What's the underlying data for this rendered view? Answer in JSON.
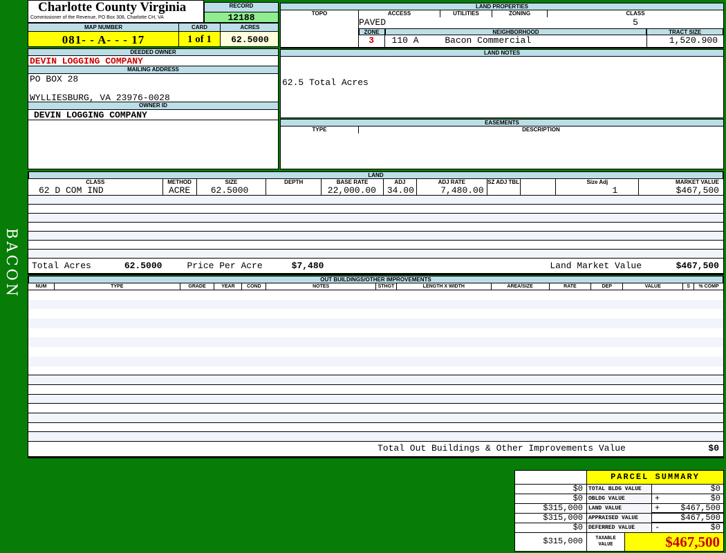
{
  "colors": {
    "page_green": "#077c07",
    "header_blue": "#BCDEE8",
    "highlight_yellow": "#FFFF00",
    "record_green": "#90EE90",
    "acres_cream": "#FFFFDE",
    "alert_red": "#CC0000",
    "stripe_blue": "#F1F4FA"
  },
  "header": {
    "county_title": "Charlotte County Virginia",
    "county_subtitle": "Commissioner of the Revenue, PO Box 308, Charlotte CH, VA",
    "record_label": "RECORD",
    "record_value": "12188",
    "map_number_label": "MAP NUMBER",
    "map_number": "081- - A- -  - 17",
    "card_label": "CARD",
    "card": "1 of 1",
    "acres_label": "ACRES",
    "acres": "62.5000"
  },
  "owner": {
    "deeded_owner_label": "DEEDED OWNER",
    "deeded_owner": "DEVIN LOGGING COMPANY",
    "mailing_address_label": "MAILING ADDRESS",
    "address_line1": "PO BOX 28",
    "address_line2": "WYLLIESBURG, VA 23976-0028",
    "owner_id_label": "OWNER ID",
    "owner_id": "DEVIN LOGGING COMPANY"
  },
  "land_properties": {
    "title": "LAND PROPERTIES",
    "topo_label": "TOPO",
    "access_label": "ACCESS",
    "utilities_label": "UTILITIES",
    "zoning_label": "ZONING",
    "class_label": "CLASS",
    "topo": "",
    "access": "PAVED",
    "utilities": "",
    "zoning": "",
    "class": "5",
    "zone_label": "ZONE",
    "neighborhood_label": "NEIGHBORHOOD",
    "tract_size_label": "TRACT SIZE",
    "zone": "3",
    "neighborhood_code": "110 A",
    "neighborhood_name": "Bacon Commercial",
    "tract_size": "1,520.900"
  },
  "land_notes": {
    "title": "LAND NOTES",
    "note": "62.5 Total Acres"
  },
  "easements": {
    "title": "EASEMENTS",
    "type_label": "TYPE",
    "description_label": "DESCRIPTION"
  },
  "land": {
    "title": "LAND",
    "headers": [
      "CLASS",
      "METHOD",
      "SIZE",
      "DEPTH",
      "BASE RATE",
      "ADJ",
      "ADJ RATE",
      "SZ ADJ TBL",
      "",
      "Size Adj",
      "MARKET VALUE"
    ],
    "rows": [
      [
        "62 D COM IND",
        "ACRE",
        "62.5000",
        "",
        "22,000.00",
        "34.00",
        "7,480.00",
        "",
        "",
        "1",
        "$467,500"
      ]
    ],
    "total_acres_label": "Total Acres",
    "total_acres": "62.5000",
    "price_per_acre_label": "Price Per Acre",
    "price_per_acre": "$7,480",
    "land_market_value_label": "Land Market Value",
    "land_market_value": "$467,500"
  },
  "out_buildings": {
    "title": "OUT BUILDINGS/OTHER IMPROVEMENTS",
    "headers": [
      "NUM",
      "TYPE",
      "GRADE",
      "YEAR",
      "COND",
      "NOTES",
      "STHGT",
      "LENGTH X WIDTH",
      "AREA/SIZE",
      "RATE",
      "DEP",
      "VALUE",
      "S",
      "% COMP"
    ],
    "total_label": "Total Out Buildings & Other Improvements Value",
    "total_value": "$0"
  },
  "parcel_summary": {
    "title": "PARCEL SUMMARY",
    "rows": [
      {
        "left": "$0",
        "label": "TOTAL BLDG VALUE",
        "op": "",
        "right": "$0"
      },
      {
        "left": "$0",
        "label": "OBLDG VALUE",
        "op": "+",
        "right": "$0"
      },
      {
        "left": "$315,000",
        "label": "LAND VALUE",
        "op": "+",
        "right": "$467,500"
      },
      {
        "left": "$315,000",
        "label": "APPRAISED VALUE",
        "op": "",
        "right": "$467,500"
      },
      {
        "left": "$0",
        "label": "DEFERRED VALUE",
        "op": "-",
        "right": "$0"
      }
    ],
    "taxable_left": "$315,000",
    "taxable_label": "TAXABLE VALUE",
    "taxable_value": "$467,500"
  },
  "sidebar": {
    "district_name": "BACON"
  }
}
